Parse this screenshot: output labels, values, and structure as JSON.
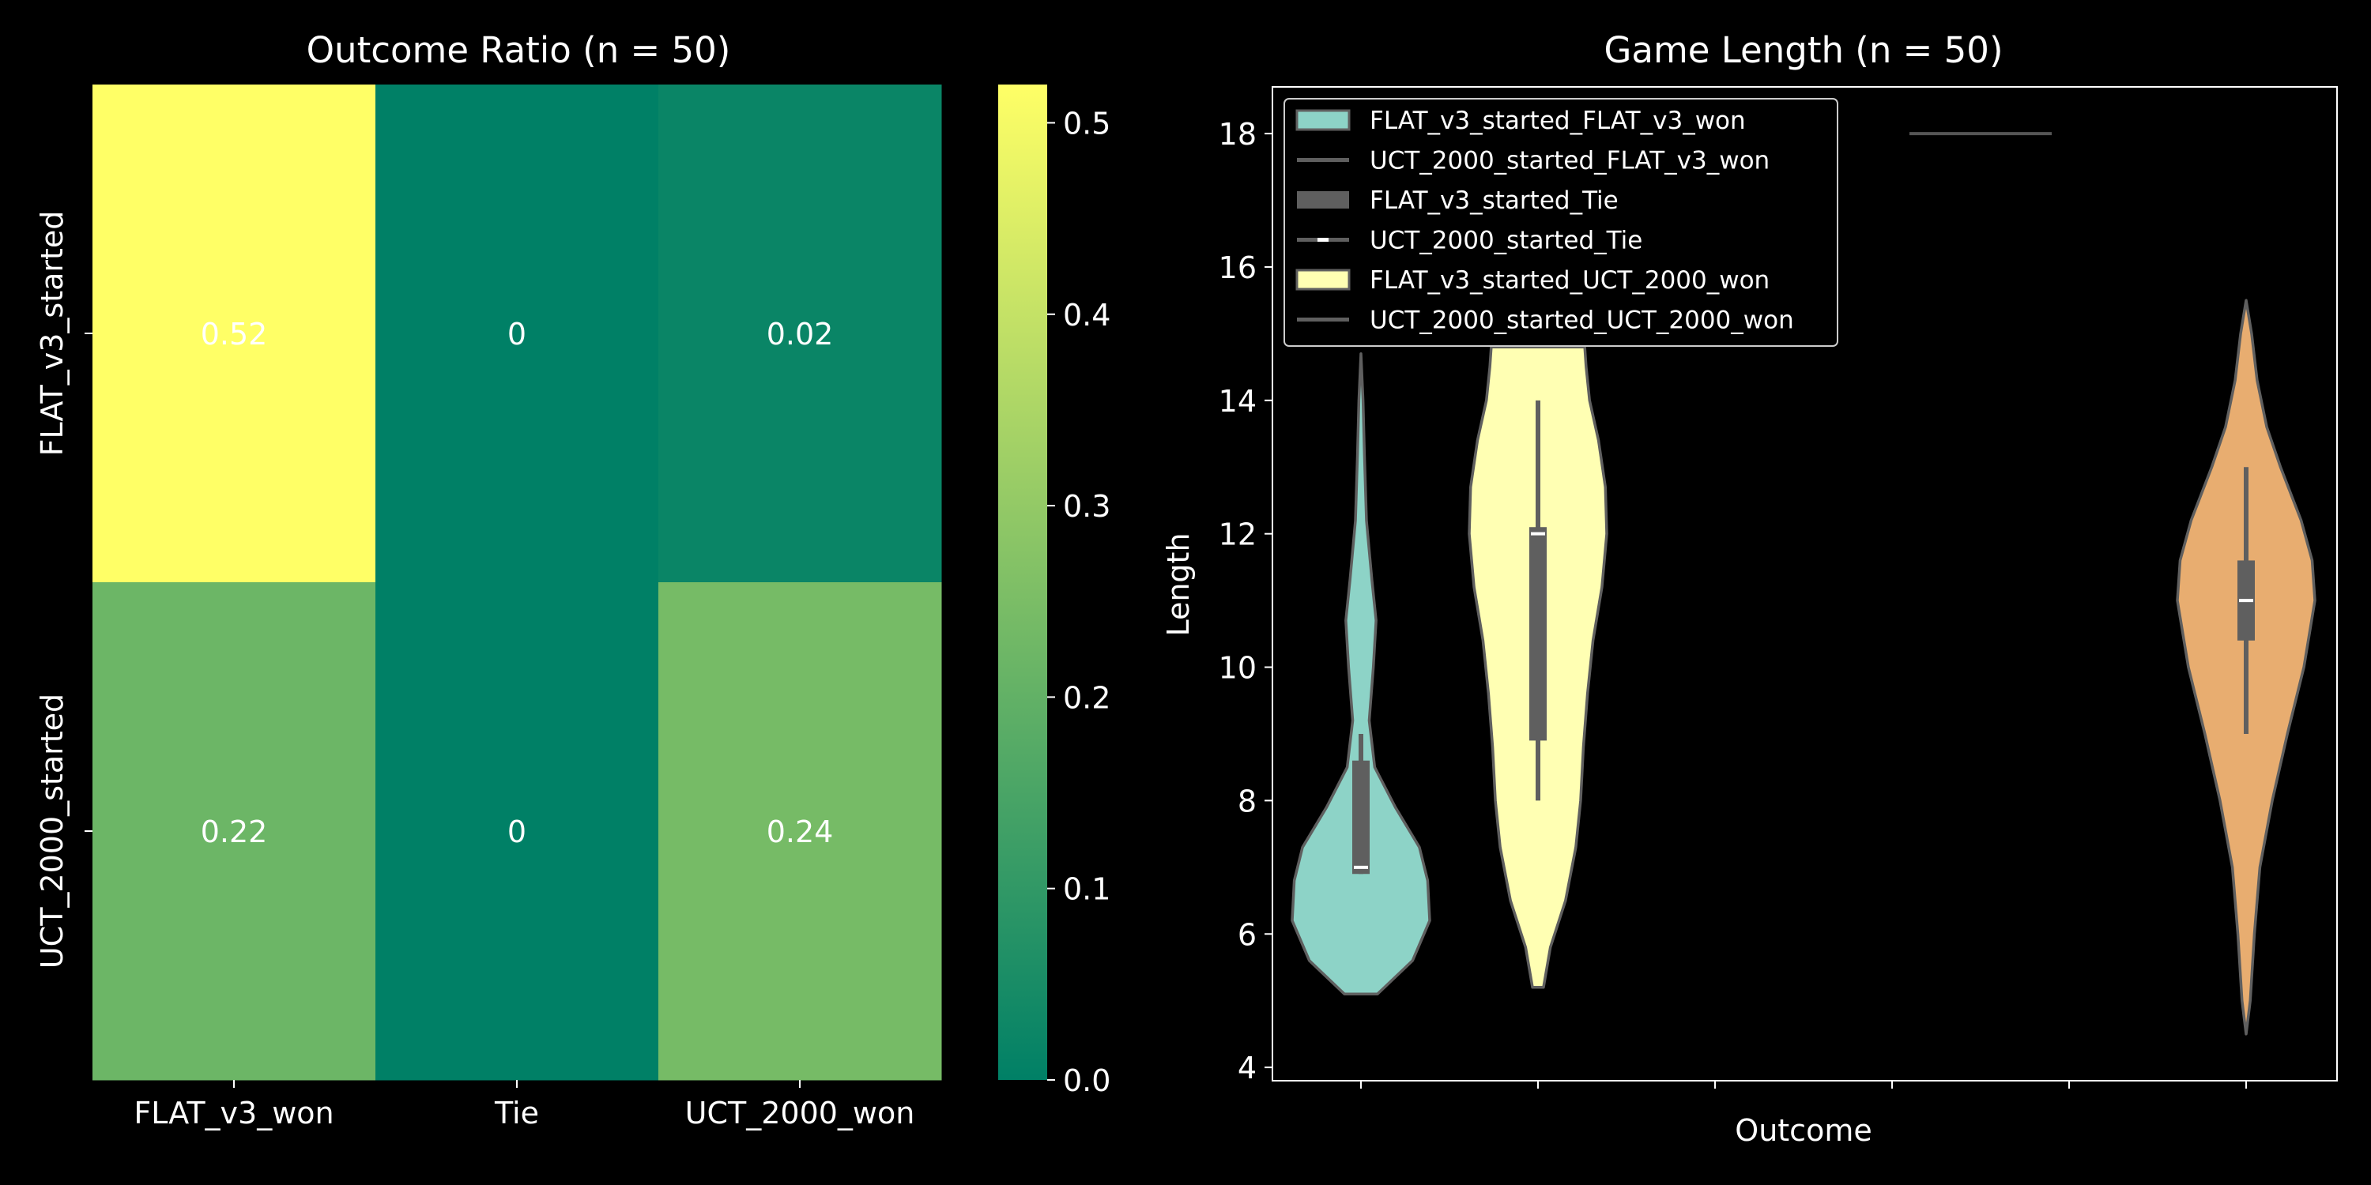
{
  "chart_data": [
    {
      "type": "heatmap",
      "title": "Outcome Ratio (n = 50)",
      "columns": [
        "FLAT_v3_won",
        "Tie",
        "UCT_2000_won"
      ],
      "rows": [
        "FLAT_v3_started",
        "UCT_2000_started"
      ],
      "values": [
        [
          0.52,
          0,
          0.02
        ],
        [
          0.22,
          0,
          0.24
        ]
      ],
      "annotations": [
        [
          "0.52",
          "0",
          "0.02"
        ],
        [
          "0.22",
          "0",
          "0.24"
        ]
      ],
      "colorbar": {
        "range": [
          0.0,
          0.52
        ],
        "ticks": [
          "0.0",
          "0.1",
          "0.2",
          "0.3",
          "0.4",
          "0.5"
        ],
        "colormap": "summer",
        "color_low": "#008066",
        "color_high": "#ffff66"
      }
    },
    {
      "type": "violin",
      "title": "Game Length (n = 50)",
      "xlabel": "Outcome",
      "ylabel": "Length",
      "ylim": [
        3.8,
        18.7
      ],
      "yticks": [
        4,
        6,
        8,
        10,
        12,
        14,
        16,
        18
      ],
      "grid": false,
      "legend_position": "top-left",
      "legend": [
        "FLAT_v3_started_FLAT_v3_won",
        "UCT_2000_started_FLAT_v3_won",
        "FLAT_v3_started_Tie",
        "UCT_2000_started_Tie",
        "FLAT_v3_started_UCT_2000_won",
        "UCT_2000_started_UCT_2000_won"
      ],
      "series": [
        {
          "label": "FLAT_v3_started_FLAT_v3_won",
          "color": "#8dd3c7",
          "kind": "violin",
          "min": 5.1,
          "max": 14.7,
          "q1": 6.9,
          "median": 7.0,
          "q3": 8.6,
          "whisker_low": 6.9,
          "whisker_high": 9.0,
          "density": [
            [
              5.1,
              0.24
            ],
            [
              5.6,
              0.75
            ],
            [
              6.2,
              1.0
            ],
            [
              6.8,
              0.97
            ],
            [
              7.3,
              0.85
            ],
            [
              7.9,
              0.5
            ],
            [
              8.5,
              0.2
            ],
            [
              9.2,
              0.12
            ],
            [
              10.0,
              0.18
            ],
            [
              10.7,
              0.22
            ],
            [
              11.3,
              0.16
            ],
            [
              12.2,
              0.08
            ],
            [
              13.2,
              0.05
            ],
            [
              14.0,
              0.03
            ],
            [
              14.7,
              0.0
            ]
          ]
        },
        {
          "label": "UCT_2000_started_FLAT_v3_won",
          "color": "#555555",
          "kind": "single",
          "value": 18
        },
        {
          "label": "FLAT_v3_started_UCT_2000_won",
          "color": "#ffffb3",
          "kind": "violin",
          "min": 5.2,
          "max": 14.8,
          "q1": 8.9,
          "median": 12.0,
          "q3": 12.1,
          "whisker_low": 8.0,
          "whisker_high": 14.0,
          "density": [
            [
              5.2,
              0.08
            ],
            [
              5.8,
              0.18
            ],
            [
              6.5,
              0.4
            ],
            [
              7.3,
              0.55
            ],
            [
              8.0,
              0.62
            ],
            [
              8.8,
              0.66
            ],
            [
              9.6,
              0.72
            ],
            [
              10.4,
              0.8
            ],
            [
              11.2,
              0.93
            ],
            [
              12.0,
              1.0
            ],
            [
              12.7,
              0.98
            ],
            [
              13.4,
              0.88
            ],
            [
              14.0,
              0.75
            ],
            [
              14.5,
              0.7
            ],
            [
              14.8,
              0.68
            ]
          ]
        },
        {
          "label": "UCT_2000_started_UCT_2000_won",
          "color": "#e8ad70",
          "kind": "violin",
          "min": 4.5,
          "max": 15.5,
          "q1": 10.4,
          "median": 11.0,
          "q3": 11.6,
          "whisker_low": 9.0,
          "whisker_high": 13.0,
          "density": [
            [
              4.5,
              0.0
            ],
            [
              5.0,
              0.06
            ],
            [
              6.0,
              0.12
            ],
            [
              7.0,
              0.2
            ],
            [
              8.0,
              0.38
            ],
            [
              9.0,
              0.6
            ],
            [
              10.0,
              0.84
            ],
            [
              11.0,
              1.0
            ],
            [
              11.6,
              0.96
            ],
            [
              12.2,
              0.8
            ],
            [
              13.0,
              0.5
            ],
            [
              13.6,
              0.3
            ],
            [
              14.3,
              0.16
            ],
            [
              15.0,
              0.08
            ],
            [
              15.5,
              0.0
            ]
          ]
        }
      ]
    }
  ]
}
